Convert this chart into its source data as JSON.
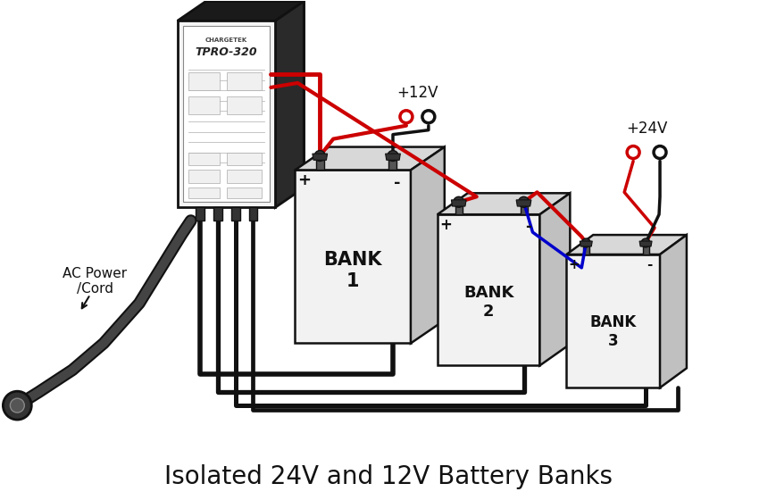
{
  "title": "Isolated 24V and 12V Battery Banks",
  "title_fontsize": 20,
  "bg_color": "#ffffff",
  "line_color_black": "#111111",
  "line_color_red": "#cc0000",
  "line_color_blue": "#0000cc",
  "label_ac_power": "AC Power\n/Cord",
  "label_12v": "+12V",
  "label_24v": "+24V",
  "label_bank1": "BANK\n1",
  "label_bank2": "BANK\n2",
  "label_bank3": "BANK\n3",
  "charger_label1": "CHARGETEK",
  "charger_label2": "TPRO-320"
}
